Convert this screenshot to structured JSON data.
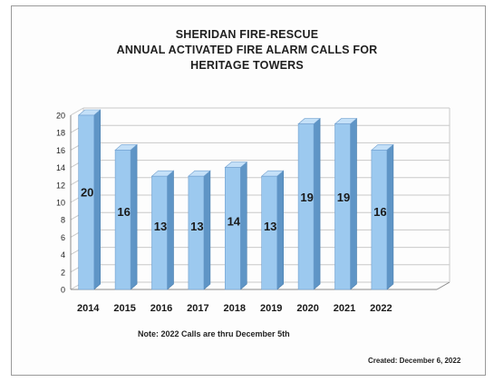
{
  "title_lines": [
    "SHERIDAN FIRE-RESCUE",
    "ANNUAL ACTIVATED FIRE ALARM CALLS FOR",
    "HERITAGE TOWERS"
  ],
  "note": "Note:  2022 Calls are thru December 5th",
  "created": "Created:  December 6, 2022",
  "colors": {
    "bar_front": "#9cc9ef",
    "bar_side": "#5f95c6",
    "bar_top": "#c4e0f8",
    "grid": "#c9c9c9",
    "axis": "#8a8a8a"
  },
  "chart_data": {
    "type": "bar",
    "title": "SHERIDAN FIRE-RESCUE ANNUAL ACTIVATED FIRE ALARM CALLS FOR HERITAGE TOWERS",
    "xlabel": "",
    "ylabel": "",
    "categories": [
      "2014",
      "2015",
      "2016",
      "2017",
      "2018",
      "2019",
      "2020",
      "2021",
      "2022"
    ],
    "values": [
      20,
      16,
      13,
      13,
      14,
      13,
      19,
      19,
      16
    ],
    "ylim": [
      0,
      20
    ],
    "yticks": [
      0,
      2,
      4,
      6,
      8,
      10,
      12,
      14,
      16,
      18,
      20
    ],
    "grid": true,
    "legend": "none",
    "style": "3d"
  }
}
